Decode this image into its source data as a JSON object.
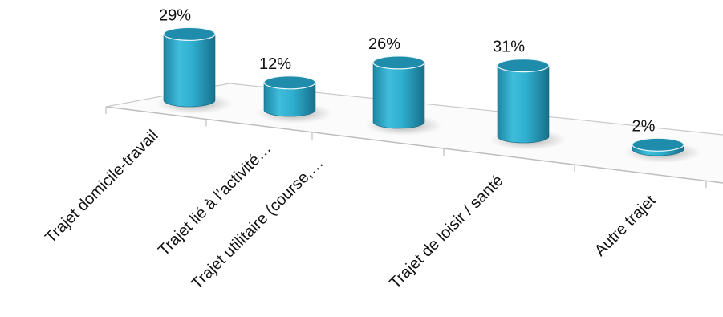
{
  "chart_data": {
    "type": "bar",
    "style": "3d-cylinder",
    "categories": [
      "Trajet domicile-travail",
      "Trajet lié à l’activité…",
      "Trajet utilitaire (course,…",
      "Trajet de loisir / santé",
      "Autre trajet"
    ],
    "values": [
      29,
      12,
      26,
      31,
      2
    ],
    "value_labels": [
      "29%",
      "12%",
      "26%",
      "31%",
      "2%"
    ],
    "unit": "%",
    "grid": false,
    "legend": false,
    "colors": {
      "bar": "#2aa6c6",
      "bar_dark": "#1b7f9c",
      "bar_top": "#1f8cab",
      "floor_line": "#bdbdbd",
      "shadow": "#8c8c8c"
    }
  }
}
